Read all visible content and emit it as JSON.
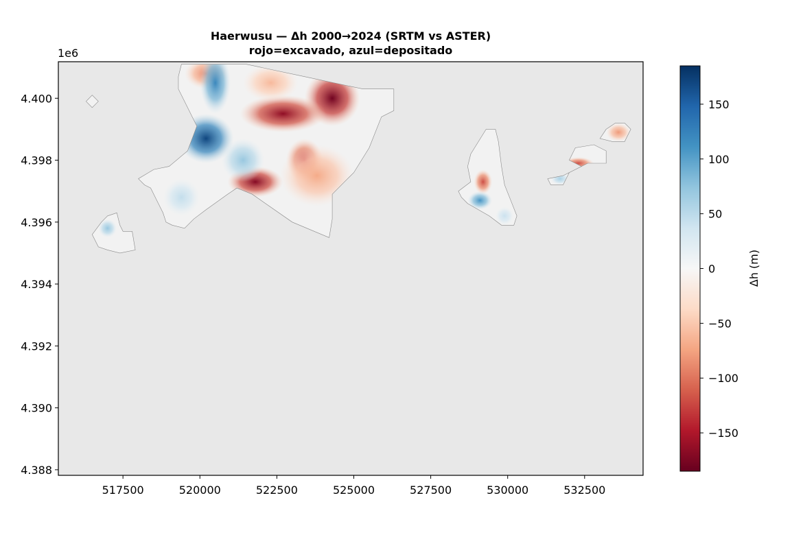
{
  "chart_data": {
    "type": "heatmap",
    "title": "Haerwusu — Δh 2000→2024 (SRTM vs ASTER)",
    "subtitle": "rojo=excavado, azul=depositado",
    "xlabel": "",
    "ylabel": "",
    "y_offset_label": "1e6",
    "xlim": [
      515400,
      534400
    ],
    "ylim": [
      4.38782,
      4.40118
    ],
    "x_ticks": [
      {
        "value": 517500,
        "label": "517500"
      },
      {
        "value": 520000,
        "label": "520000"
      },
      {
        "value": 522500,
        "label": "522500"
      },
      {
        "value": 525000,
        "label": "525000"
      },
      {
        "value": 527500,
        "label": "527500"
      },
      {
        "value": 530000,
        "label": "530000"
      },
      {
        "value": 532500,
        "label": "532500"
      }
    ],
    "y_ticks": [
      {
        "value": 4.388,
        "label": "4.388"
      },
      {
        "value": 4.39,
        "label": "4.390"
      },
      {
        "value": 4.392,
        "label": "4.392"
      },
      {
        "value": 4.394,
        "label": "4.394"
      },
      {
        "value": 4.396,
        "label": "4.396"
      },
      {
        "value": 4.398,
        "label": "4.398"
      },
      {
        "value": 4.4,
        "label": "4.400"
      }
    ],
    "background_color": "#e8e8e8",
    "grid": false,
    "colorbar": {
      "label": "Δh (m)",
      "colormap": "RdBu",
      "range": [
        -185,
        185
      ],
      "colors_low_to_high": [
        "#67001f",
        "#b2182b",
        "#d6604d",
        "#f4a582",
        "#fddbc7",
        "#f7f7f7",
        "#d1e5f0",
        "#92c5de",
        "#4393c3",
        "#2166ac",
        "#053061"
      ],
      "ticks": [
        {
          "value": 150,
          "label": "150"
        },
        {
          "value": 100,
          "label": "100"
        },
        {
          "value": 50,
          "label": "50"
        },
        {
          "value": 0,
          "label": "0"
        },
        {
          "value": -50,
          "label": "−50"
        },
        {
          "value": -100,
          "label": "−100"
        },
        {
          "value": -150,
          "label": "−150"
        }
      ]
    },
    "regions": [
      {
        "name": "main-pit",
        "outline": [
          [
            519400,
            4.4011
          ],
          [
            521500,
            4.4011
          ],
          [
            523400,
            4.4007
          ],
          [
            525300,
            4.4003
          ],
          [
            526300,
            4.4003
          ],
          [
            526300,
            4.3996
          ],
          [
            525900,
            4.3994
          ],
          [
            525500,
            4.3984
          ],
          [
            525000,
            4.3976
          ],
          [
            524700,
            4.3973
          ],
          [
            524300,
            4.3969
          ],
          [
            524300,
            4.3961
          ],
          [
            524200,
            4.3955
          ],
          [
            523000,
            4.396
          ],
          [
            521700,
            4.3969
          ],
          [
            521200,
            4.3971
          ],
          [
            520900,
            4.3969
          ],
          [
            520200,
            4.3964
          ],
          [
            519800,
            4.3961
          ],
          [
            519500,
            4.3958
          ],
          [
            519100,
            4.3959
          ],
          [
            518900,
            4.396
          ],
          [
            518800,
            4.3963
          ],
          [
            518600,
            4.3967
          ],
          [
            518400,
            4.3971
          ],
          [
            518200,
            4.3972
          ],
          [
            518000,
            4.3974
          ],
          [
            518500,
            4.3977
          ],
          [
            519000,
            4.3978
          ],
          [
            519600,
            4.3983
          ],
          [
            519900,
            4.3991
          ],
          [
            519300,
            4.4003
          ],
          [
            519300,
            4.4007
          ]
        ]
      },
      {
        "name": "west-island",
        "outline": [
          [
            516500,
            4.3956
          ],
          [
            516800,
            4.396
          ],
          [
            517000,
            4.3962
          ],
          [
            517300,
            4.3963
          ],
          [
            517400,
            4.3959
          ],
          [
            517500,
            4.3957
          ],
          [
            517800,
            4.3957
          ],
          [
            517900,
            4.3951
          ],
          [
            517400,
            4.395
          ],
          [
            517000,
            4.3951
          ],
          [
            516700,
            4.3952
          ]
        ]
      },
      {
        "name": "mid-east",
        "outline": [
          [
            528800,
            4.3982
          ],
          [
            529300,
            4.399
          ],
          [
            529600,
            4.399
          ],
          [
            529700,
            4.3986
          ],
          [
            529800,
            4.3978
          ],
          [
            529900,
            4.3972
          ],
          [
            530100,
            4.3967
          ],
          [
            530300,
            4.3962
          ],
          [
            530200,
            4.3959
          ],
          [
            529800,
            4.3959
          ],
          [
            529400,
            4.3962
          ],
          [
            528700,
            4.3966
          ],
          [
            528500,
            4.3968
          ],
          [
            528400,
            4.397
          ],
          [
            528800,
            4.3973
          ],
          [
            528700,
            4.3978
          ]
        ]
      },
      {
        "name": "east-island-1",
        "outline": [
          [
            531300,
            4.3974
          ],
          [
            531800,
            4.3975
          ],
          [
            532200,
            4.3977
          ],
          [
            532400,
            4.3978
          ],
          [
            532000,
            4.398
          ],
          [
            532200,
            4.3984
          ],
          [
            532800,
            4.3985
          ],
          [
            533200,
            4.3983
          ],
          [
            533200,
            4.3979
          ],
          [
            532600,
            4.3979
          ],
          [
            532000,
            4.3976
          ],
          [
            531800,
            4.3972
          ],
          [
            531400,
            4.3972
          ]
        ]
      },
      {
        "name": "east-island-2",
        "outline": [
          [
            533200,
            4.399
          ],
          [
            533500,
            4.3992
          ],
          [
            533800,
            4.3992
          ],
          [
            534000,
            4.399
          ],
          [
            533800,
            4.3986
          ],
          [
            533400,
            4.3986
          ],
          [
            533000,
            4.3987
          ]
        ]
      },
      {
        "name": "north-west-fragment",
        "outline": [
          [
            516300,
            4.3999
          ],
          [
            516500,
            4.4001
          ],
          [
            516700,
            4.3999
          ],
          [
            516500,
            4.3997
          ]
        ]
      }
    ],
    "hotspots": [
      {
        "x": 524300,
        "y": 4.4,
        "dh": -180,
        "rx": 900,
        "ry": 0.0009
      },
      {
        "x": 522700,
        "y": 4.3995,
        "dh": -165,
        "rx": 1400,
        "ry": 0.0006
      },
      {
        "x": 521800,
        "y": 4.3973,
        "dh": -170,
        "rx": 900,
        "ry": 0.0005
      },
      {
        "x": 523400,
        "y": 4.398,
        "dh": -130,
        "rx": 600,
        "ry": 0.0007
      },
      {
        "x": 523800,
        "y": 4.3975,
        "dh": -70,
        "rx": 1200,
        "ry": 0.001
      },
      {
        "x": 520200,
        "y": 4.4008,
        "dh": -90,
        "rx": 700,
        "ry": 0.0005
      },
      {
        "x": 522300,
        "y": 4.4005,
        "dh": -60,
        "rx": 900,
        "ry": 0.0006
      },
      {
        "x": 520200,
        "y": 4.3987,
        "dh": 170,
        "rx": 900,
        "ry": 0.0008
      },
      {
        "x": 520500,
        "y": 4.4005,
        "dh": 120,
        "rx": 500,
        "ry": 0.001
      },
      {
        "x": 521400,
        "y": 4.398,
        "dh": 70,
        "rx": 700,
        "ry": 0.0007
      },
      {
        "x": 519400,
        "y": 4.3968,
        "dh": 45,
        "rx": 600,
        "ry": 0.0006
      },
      {
        "x": 517000,
        "y": 4.3958,
        "dh": 70,
        "rx": 300,
        "ry": 0.0003
      },
      {
        "x": 529200,
        "y": 4.3973,
        "dh": -120,
        "rx": 300,
        "ry": 0.0004
      },
      {
        "x": 529100,
        "y": 4.3967,
        "dh": 110,
        "rx": 400,
        "ry": 0.0003
      },
      {
        "x": 529900,
        "y": 4.3962,
        "dh": 40,
        "rx": 300,
        "ry": 0.0003
      },
      {
        "x": 532300,
        "y": 4.3979,
        "dh": -120,
        "rx": 500,
        "ry": 0.0002
      },
      {
        "x": 531700,
        "y": 4.3974,
        "dh": 60,
        "rx": 300,
        "ry": 0.0002
      },
      {
        "x": 533600,
        "y": 4.3989,
        "dh": -80,
        "rx": 400,
        "ry": 0.0003
      }
    ]
  }
}
